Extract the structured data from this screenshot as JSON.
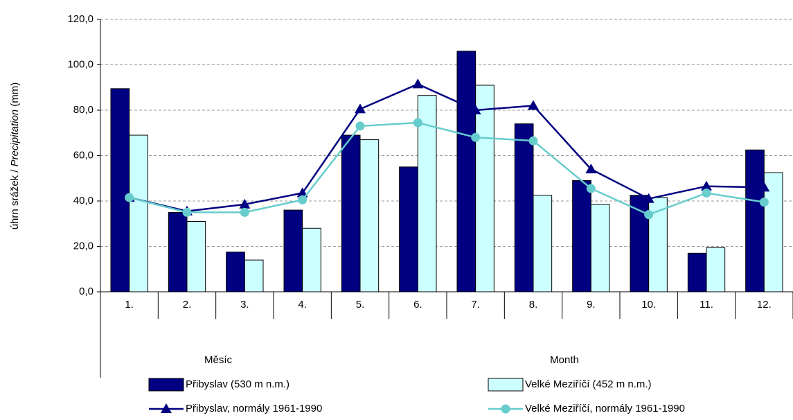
{
  "chart_data": {
    "type": "bar",
    "y_label": [
      "úhrn srážek / ",
      "Precipitation",
      " (mm)"
    ],
    "categories": [
      "1.",
      "2.",
      "3.",
      "4.",
      "5.",
      "6.",
      "7.",
      "8.",
      "9.",
      "10.",
      "11.",
      "12."
    ],
    "x_group_labels": [
      "Měsíc",
      "Month"
    ],
    "series": [
      {
        "name": "Přibyslav (530 m n.m.)",
        "kind": "bar",
        "color": "#000080",
        "values": [
          89.5,
          35,
          17.5,
          36,
          69,
          55,
          106,
          74,
          49,
          42.5,
          17,
          62.5
        ]
      },
      {
        "name": "Velké Meziříčí (452 m n.m.)",
        "kind": "bar",
        "color": "#ccffff",
        "values": [
          69,
          31,
          14,
          28,
          67,
          86.5,
          91,
          42.5,
          38.5,
          41.5,
          19.5,
          52.5
        ]
      },
      {
        "name": "Přibyslav, normály 1961-1990",
        "kind": "line",
        "marker": "triangle",
        "color": "#000080",
        "values": [
          41.5,
          35.5,
          38.5,
          43.5,
          80.5,
          91.5,
          80,
          82,
          54,
          41,
          46.5,
          46
        ]
      },
      {
        "name": "Velké Meziříčí, normály 1961-1990",
        "kind": "line",
        "marker": "circle",
        "color": "#66cccc",
        "values": [
          41.5,
          35,
          35,
          40.5,
          73,
          74.5,
          68,
          66.5,
          45.5,
          34,
          43.5,
          39.5
        ]
      }
    ],
    "ylim": [
      0,
      120
    ],
    "yticks": [
      {
        "value": 0,
        "label": "0,0"
      },
      {
        "value": 20,
        "label": "20,0"
      },
      {
        "value": 40,
        "label": "40,0"
      },
      {
        "value": 60,
        "label": "60,0"
      },
      {
        "value": 80,
        "label": "80,0"
      },
      {
        "value": 100,
        "label": "100,0"
      },
      {
        "value": 120,
        "label": "120,0"
      }
    ],
    "grid": true
  }
}
